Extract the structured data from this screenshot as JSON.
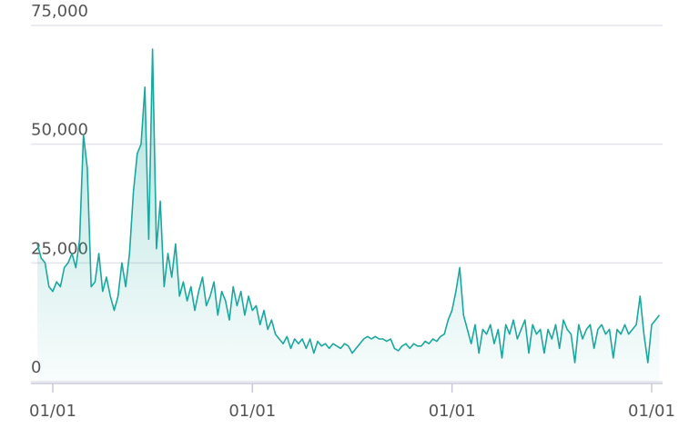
{
  "chart_data": {
    "type": "area",
    "categories": [
      null,
      null,
      null,
      null,
      "01/01",
      null,
      null,
      null,
      null,
      null,
      null,
      null,
      null,
      null,
      null,
      null,
      null,
      null,
      null,
      null,
      null,
      null,
      null,
      null,
      null,
      null,
      null,
      null,
      null,
      null,
      null,
      null,
      null,
      null,
      null,
      null,
      null,
      null,
      null,
      null,
      null,
      null,
      null,
      null,
      null,
      null,
      null,
      null,
      null,
      null,
      null,
      null,
      null,
      null,
      null,
      null,
      "01/01",
      null,
      null,
      null,
      null,
      null,
      null,
      null,
      null,
      null,
      null,
      null,
      null,
      null,
      null,
      null,
      null,
      null,
      null,
      null,
      null,
      null,
      null,
      null,
      null,
      null,
      null,
      null,
      null,
      null,
      null,
      null,
      null,
      null,
      null,
      null,
      null,
      null,
      null,
      null,
      null,
      null,
      null,
      null,
      null,
      null,
      null,
      null,
      null,
      null,
      null,
      null,
      "01/01",
      null,
      null,
      null,
      null,
      null,
      null,
      null,
      null,
      null,
      null,
      null,
      null,
      null,
      null,
      null,
      null,
      null,
      null,
      null,
      null,
      null,
      null,
      null,
      null,
      null,
      null,
      null,
      null,
      null,
      null,
      null,
      null,
      null,
      null,
      null,
      null,
      null,
      null,
      null,
      null,
      null,
      null,
      null,
      null,
      null,
      null,
      null,
      null,
      null,
      null,
      null,
      "01/01",
      null,
      null
    ],
    "values": [
      29000,
      26000,
      25000,
      20000,
      19000,
      21000,
      20000,
      24000,
      25000,
      27000,
      24000,
      30000,
      52000,
      45000,
      20000,
      21000,
      27000,
      19000,
      22000,
      18000,
      15000,
      18000,
      25000,
      20000,
      27000,
      40000,
      48000,
      50000,
      62000,
      30000,
      70000,
      28000,
      38000,
      20000,
      27000,
      22000,
      29000,
      18000,
      21000,
      17000,
      20000,
      15000,
      19000,
      22000,
      16000,
      18000,
      21000,
      14000,
      19000,
      17000,
      13000,
      20000,
      16000,
      19000,
      14000,
      18000,
      15000,
      16000,
      12000,
      15000,
      11000,
      13000,
      10000,
      9000,
      8000,
      9500,
      7000,
      9000,
      8000,
      9000,
      7000,
      9000,
      6000,
      8500,
      7500,
      8000,
      7000,
      8000,
      7500,
      7000,
      8000,
      7500,
      6000,
      7000,
      8000,
      9000,
      9500,
      9000,
      9500,
      9000,
      9000,
      8500,
      9000,
      7000,
      6500,
      7500,
      8000,
      7000,
      8000,
      7500,
      7500,
      8500,
      8000,
      9000,
      8500,
      9500,
      10000,
      13000,
      15000,
      19000,
      24000,
      14000,
      11000,
      8000,
      12000,
      6000,
      11000,
      10000,
      12000,
      8000,
      11000,
      5000,
      12000,
      10000,
      13000,
      9000,
      11000,
      13000,
      6000,
      12000,
      10000,
      11000,
      6000,
      11000,
      9000,
      12000,
      7000,
      13000,
      11000,
      10000,
      4000,
      12000,
      9000,
      11000,
      12000,
      7000,
      11000,
      12000,
      10000,
      11000,
      5000,
      11000,
      10000,
      12000,
      10000,
      11000,
      12000,
      18000,
      10000,
      4000,
      12000,
      13000,
      14000
    ],
    "color": "#1aa89e",
    "ylim": [
      0,
      75000
    ],
    "yticks": [
      0,
      {
        "value": 25000,
        "label": "25,000"
      },
      {
        "value": 50000,
        "label": "50,000"
      },
      {
        "value": 75000,
        "label": "75,000"
      }
    ],
    "grid": true
  }
}
